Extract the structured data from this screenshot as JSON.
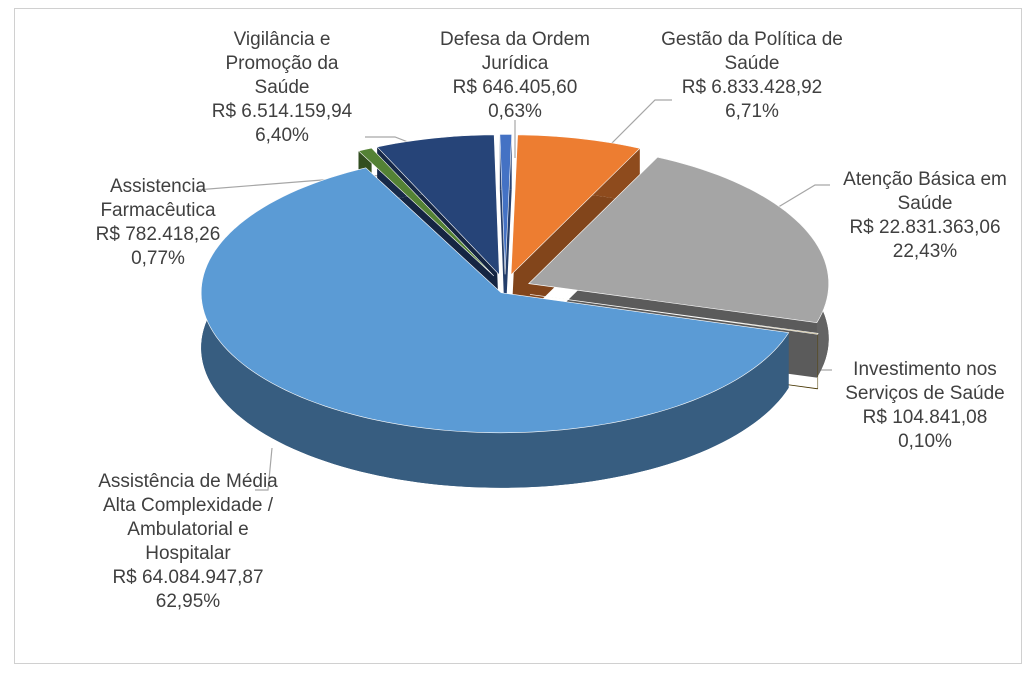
{
  "chart_data": {
    "type": "pie3d",
    "categories": [
      "Defesa da Ordem Jurídica",
      "Gestão da Política de Saúde",
      "Atenção Básica em Saúde",
      "Investimento nos Serviços de Saúde",
      "Assistência de Média Alta Complexidade / Ambulatorial e Hospitalar",
      "Assistencia Farmacêutica",
      "Vigilância e Promoção da Saúde"
    ],
    "values": [
      0.63,
      6.71,
      22.43,
      0.1,
      62.95,
      0.77,
      6.4
    ],
    "value_labels": [
      "0,63%",
      "6,71%",
      "22,43%",
      "0,10%",
      "62,95%",
      "0,77%",
      "6,40%"
    ],
    "amount_labels": [
      "R$ 646.405,60",
      "R$ 6.833.428,92",
      "R$ 22.831.363,06",
      "R$ 104.841,08",
      "R$ 64.084.947,87",
      "R$ 782.418,26",
      "R$ 6.514.159,94"
    ],
    "colors": [
      "#4472c4",
      "#ed7d31",
      "#a5a5a5",
      "#7f6000",
      "#5b9bd5",
      "#548235",
      "#264478"
    ]
  }
}
